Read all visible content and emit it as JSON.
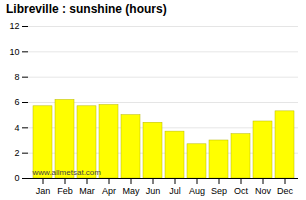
{
  "chart_data": {
    "type": "bar",
    "title": "Libreville : sunshine (hours)",
    "categories": [
      "Jan",
      "Feb",
      "Mar",
      "Apr",
      "May",
      "Jun",
      "Jul",
      "Aug",
      "Sep",
      "Oct",
      "Nov",
      "Dec"
    ],
    "values": [
      5.7,
      6.2,
      5.7,
      5.8,
      5.0,
      4.4,
      3.7,
      2.7,
      3.0,
      3.5,
      4.5,
      5.3
    ],
    "color": "#ffff00",
    "ylim": [
      0,
      12
    ],
    "yticks": [
      0,
      2,
      4,
      6,
      8,
      10,
      12
    ],
    "grid": true,
    "annotations": [
      "www.allmetsat.com"
    ]
  }
}
